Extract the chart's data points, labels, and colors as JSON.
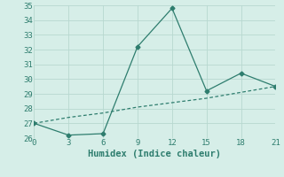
{
  "line1_x": [
    0,
    3,
    6,
    9,
    12,
    15,
    18,
    21
  ],
  "line1_y": [
    27.0,
    26.2,
    26.3,
    32.2,
    34.8,
    29.2,
    30.4,
    29.5
  ],
  "line2_x": [
    0,
    3,
    6,
    9,
    12,
    15,
    18,
    21
  ],
  "line2_y": [
    27.0,
    27.4,
    27.7,
    28.1,
    28.4,
    28.7,
    29.1,
    29.5
  ],
  "line_color": "#2e7d6e",
  "background_color": "#d6eee8",
  "xlabel": "Humidex (Indice chaleur)",
  "xlim": [
    0,
    21
  ],
  "ylim": [
    26,
    35
  ],
  "xticks": [
    0,
    3,
    6,
    9,
    12,
    15,
    18,
    21
  ],
  "yticks": [
    26,
    27,
    28,
    29,
    30,
    31,
    32,
    33,
    34,
    35
  ],
  "grid_color": "#b8d8d0",
  "font_color": "#2e7d6e",
  "tick_fontsize": 6.5,
  "xlabel_fontsize": 7.5
}
